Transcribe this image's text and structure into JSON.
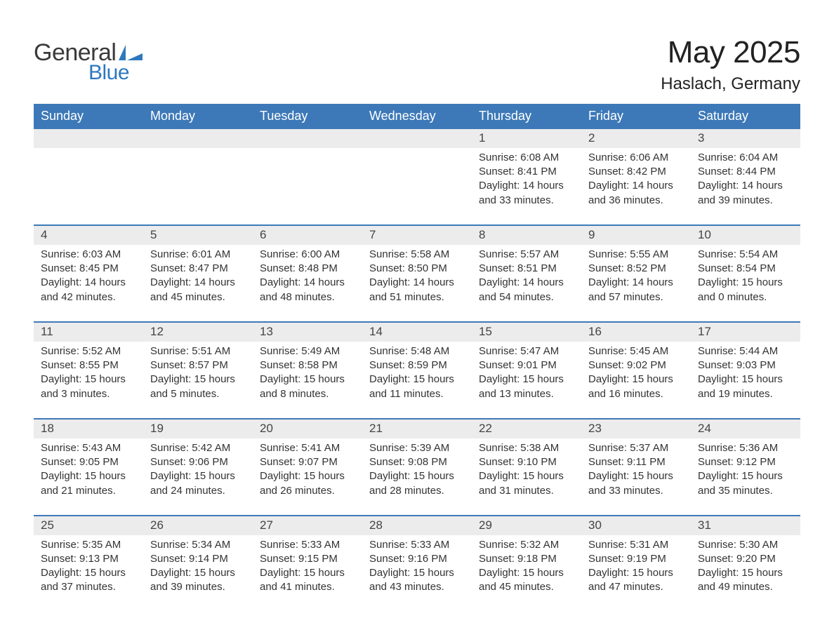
{
  "brand": {
    "part1": "General",
    "part2": "Blue",
    "logo_color": "#2f78bf"
  },
  "title": "May 2025",
  "location": "Haslach, Germany",
  "colors": {
    "header_bg": "#3d79b8",
    "header_text": "#ffffff",
    "row_accent": "#3d79b8",
    "daynum_bg": "#ececec",
    "text": "#333333"
  },
  "day_headers": [
    "Sunday",
    "Monday",
    "Tuesday",
    "Wednesday",
    "Thursday",
    "Friday",
    "Saturday"
  ],
  "weeks": [
    {
      "days": [
        null,
        null,
        null,
        null,
        {
          "n": "1",
          "sunrise": "6:08 AM",
          "sunset": "8:41 PM",
          "dl1": "14 hours",
          "dl2": "and 33 minutes."
        },
        {
          "n": "2",
          "sunrise": "6:06 AM",
          "sunset": "8:42 PM",
          "dl1": "14 hours",
          "dl2": "and 36 minutes."
        },
        {
          "n": "3",
          "sunrise": "6:04 AM",
          "sunset": "8:44 PM",
          "dl1": "14 hours",
          "dl2": "and 39 minutes."
        }
      ]
    },
    {
      "days": [
        {
          "n": "4",
          "sunrise": "6:03 AM",
          "sunset": "8:45 PM",
          "dl1": "14 hours",
          "dl2": "and 42 minutes."
        },
        {
          "n": "5",
          "sunrise": "6:01 AM",
          "sunset": "8:47 PM",
          "dl1": "14 hours",
          "dl2": "and 45 minutes."
        },
        {
          "n": "6",
          "sunrise": "6:00 AM",
          "sunset": "8:48 PM",
          "dl1": "14 hours",
          "dl2": "and 48 minutes."
        },
        {
          "n": "7",
          "sunrise": "5:58 AM",
          "sunset": "8:50 PM",
          "dl1": "14 hours",
          "dl2": "and 51 minutes."
        },
        {
          "n": "8",
          "sunrise": "5:57 AM",
          "sunset": "8:51 PM",
          "dl1": "14 hours",
          "dl2": "and 54 minutes."
        },
        {
          "n": "9",
          "sunrise": "5:55 AM",
          "sunset": "8:52 PM",
          "dl1": "14 hours",
          "dl2": "and 57 minutes."
        },
        {
          "n": "10",
          "sunrise": "5:54 AM",
          "sunset": "8:54 PM",
          "dl1": "15 hours",
          "dl2": "and 0 minutes."
        }
      ]
    },
    {
      "days": [
        {
          "n": "11",
          "sunrise": "5:52 AM",
          "sunset": "8:55 PM",
          "dl1": "15 hours",
          "dl2": "and 3 minutes."
        },
        {
          "n": "12",
          "sunrise": "5:51 AM",
          "sunset": "8:57 PM",
          "dl1": "15 hours",
          "dl2": "and 5 minutes."
        },
        {
          "n": "13",
          "sunrise": "5:49 AM",
          "sunset": "8:58 PM",
          "dl1": "15 hours",
          "dl2": "and 8 minutes."
        },
        {
          "n": "14",
          "sunrise": "5:48 AM",
          "sunset": "8:59 PM",
          "dl1": "15 hours",
          "dl2": "and 11 minutes."
        },
        {
          "n": "15",
          "sunrise": "5:47 AM",
          "sunset": "9:01 PM",
          "dl1": "15 hours",
          "dl2": "and 13 minutes."
        },
        {
          "n": "16",
          "sunrise": "5:45 AM",
          "sunset": "9:02 PM",
          "dl1": "15 hours",
          "dl2": "and 16 minutes."
        },
        {
          "n": "17",
          "sunrise": "5:44 AM",
          "sunset": "9:03 PM",
          "dl1": "15 hours",
          "dl2": "and 19 minutes."
        }
      ]
    },
    {
      "days": [
        {
          "n": "18",
          "sunrise": "5:43 AM",
          "sunset": "9:05 PM",
          "dl1": "15 hours",
          "dl2": "and 21 minutes."
        },
        {
          "n": "19",
          "sunrise": "5:42 AM",
          "sunset": "9:06 PM",
          "dl1": "15 hours",
          "dl2": "and 24 minutes."
        },
        {
          "n": "20",
          "sunrise": "5:41 AM",
          "sunset": "9:07 PM",
          "dl1": "15 hours",
          "dl2": "and 26 minutes."
        },
        {
          "n": "21",
          "sunrise": "5:39 AM",
          "sunset": "9:08 PM",
          "dl1": "15 hours",
          "dl2": "and 28 minutes."
        },
        {
          "n": "22",
          "sunrise": "5:38 AM",
          "sunset": "9:10 PM",
          "dl1": "15 hours",
          "dl2": "and 31 minutes."
        },
        {
          "n": "23",
          "sunrise": "5:37 AM",
          "sunset": "9:11 PM",
          "dl1": "15 hours",
          "dl2": "and 33 minutes."
        },
        {
          "n": "24",
          "sunrise": "5:36 AM",
          "sunset": "9:12 PM",
          "dl1": "15 hours",
          "dl2": "and 35 minutes."
        }
      ]
    },
    {
      "days": [
        {
          "n": "25",
          "sunrise": "5:35 AM",
          "sunset": "9:13 PM",
          "dl1": "15 hours",
          "dl2": "and 37 minutes."
        },
        {
          "n": "26",
          "sunrise": "5:34 AM",
          "sunset": "9:14 PM",
          "dl1": "15 hours",
          "dl2": "and 39 minutes."
        },
        {
          "n": "27",
          "sunrise": "5:33 AM",
          "sunset": "9:15 PM",
          "dl1": "15 hours",
          "dl2": "and 41 minutes."
        },
        {
          "n": "28",
          "sunrise": "5:33 AM",
          "sunset": "9:16 PM",
          "dl1": "15 hours",
          "dl2": "and 43 minutes."
        },
        {
          "n": "29",
          "sunrise": "5:32 AM",
          "sunset": "9:18 PM",
          "dl1": "15 hours",
          "dl2": "and 45 minutes."
        },
        {
          "n": "30",
          "sunrise": "5:31 AM",
          "sunset": "9:19 PM",
          "dl1": "15 hours",
          "dl2": "and 47 minutes."
        },
        {
          "n": "31",
          "sunrise": "5:30 AM",
          "sunset": "9:20 PM",
          "dl1": "15 hours",
          "dl2": "and 49 minutes."
        }
      ]
    }
  ],
  "labels": {
    "sunrise": "Sunrise: ",
    "sunset": "Sunset: ",
    "daylight": "Daylight: "
  }
}
